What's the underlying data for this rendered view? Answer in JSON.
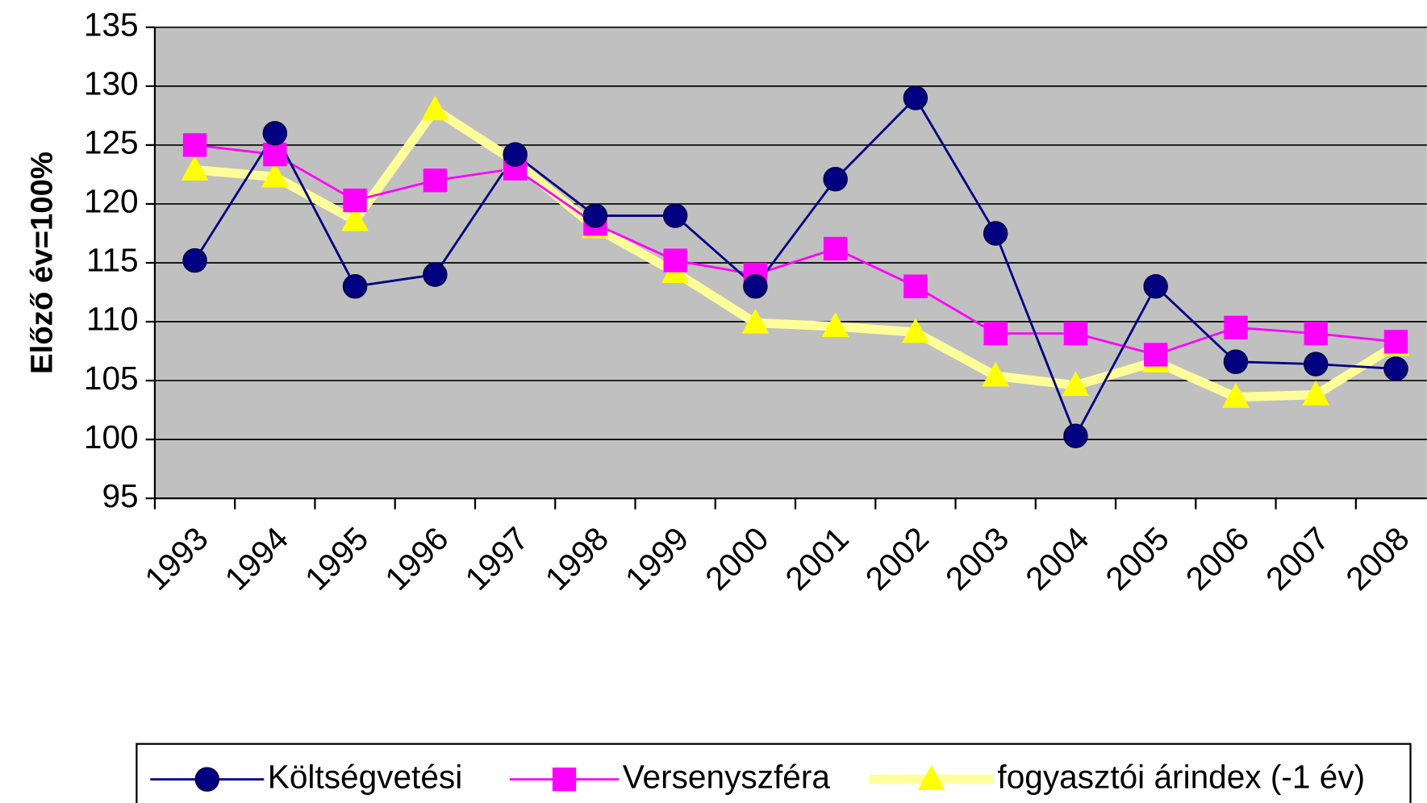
{
  "chart_data": {
    "type": "line",
    "ylabel": "Előző év=100%",
    "categories": [
      "1993",
      "1994",
      "1995",
      "1996",
      "1997",
      "1998",
      "1999",
      "2000",
      "2001",
      "2002",
      "2003",
      "2004",
      "2005",
      "2006",
      "2007",
      "2008"
    ],
    "series": [
      {
        "name": "Költségvetési",
        "color": "#000080",
        "marker": "circle",
        "values": [
          115.2,
          126,
          113,
          114,
          124.2,
          119,
          119,
          113,
          122.1,
          129,
          117.5,
          100.3,
          113,
          106.6,
          106.4,
          106
        ]
      },
      {
        "name": "Versenyszféra",
        "color": "#FF00FF",
        "marker": "square",
        "values": [
          125,
          124.2,
          120.3,
          122,
          123,
          118.3,
          115.2,
          114,
          116.2,
          113,
          109,
          109,
          107.2,
          109.5,
          109,
          108.3
        ]
      },
      {
        "name": "fogyasztói árindex (-1 év)",
        "color": "#FFFF00",
        "marker": "triangle",
        "values": [
          122.9,
          122.3,
          118.6,
          128,
          123.6,
          118,
          114.2,
          109.9,
          109.6,
          109.1,
          105.4,
          104.6,
          106.6,
          103.6,
          103.8,
          108
        ]
      }
    ],
    "ylim": [
      95,
      135
    ],
    "yticks": [
      95,
      100,
      105,
      110,
      115,
      120,
      125,
      130,
      135
    ],
    "grid": true
  }
}
